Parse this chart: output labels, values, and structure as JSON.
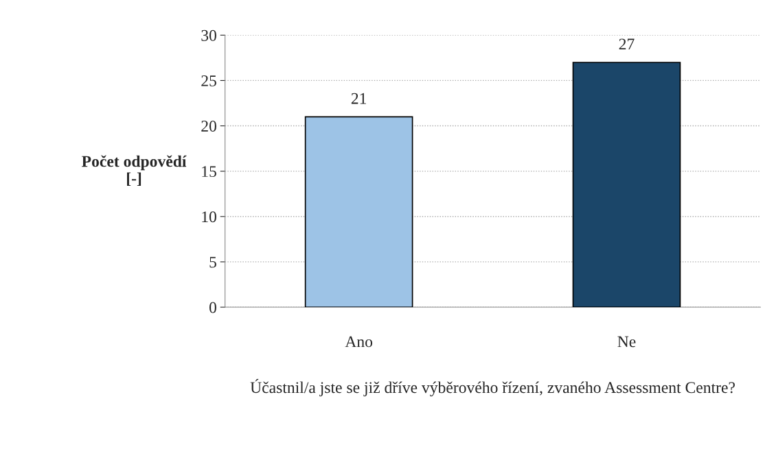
{
  "chart_data": {
    "type": "bar",
    "ylabel": "Počet odpovědí\n[-]",
    "xlabel": "Účastnil/a jste se již dříve výběrového řízení, zvaného Assessment Centre?",
    "categories": [
      "Ano",
      "Ne"
    ],
    "values": [
      21,
      27
    ],
    "colors": [
      "#9dc3e6",
      "#1b4669"
    ],
    "ylim": [
      0,
      30
    ],
    "yticks": [
      0,
      5,
      10,
      15,
      20,
      25,
      30
    ],
    "grid": "y",
    "data_labels": true
  }
}
